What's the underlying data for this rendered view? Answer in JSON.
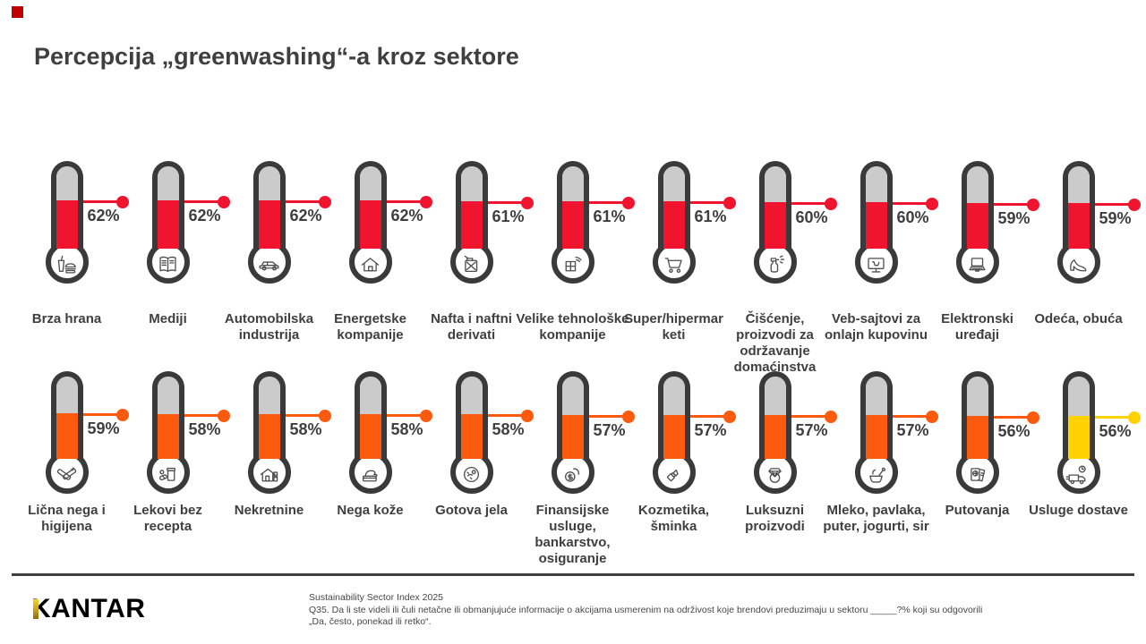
{
  "title": "Percepcija „greenwashing“-a kroz sektore",
  "decor_square_color": "#c00000",
  "palette": {
    "red": "#f0142f",
    "orange": "#fb5a0f",
    "yellow": "#ffd200",
    "tube_gray": "#cbcbcb",
    "outline": "#3a3a3a",
    "text": "#3f3f3f"
  },
  "rows": [
    {
      "items": [
        {
          "label": "Brza hrana",
          "value": 62,
          "color": "#f0142f",
          "icon": "fast-food"
        },
        {
          "label": "Mediji",
          "value": 62,
          "color": "#f0142f",
          "icon": "media-magazine"
        },
        {
          "label": "Automobilska industrija",
          "value": 62,
          "color": "#f0142f",
          "icon": "car"
        },
        {
          "label": "Energetske kompanije",
          "value": 62,
          "color": "#f0142f",
          "icon": "house-energy"
        },
        {
          "label": "Nafta i naftni derivati",
          "value": 61,
          "color": "#f0142f",
          "icon": "fuel-can"
        },
        {
          "label": "Velike tehnološke kompanije",
          "value": 61,
          "color": "#f0142f",
          "icon": "tech-windows"
        },
        {
          "label": "Super/hipermar keti",
          "value": 61,
          "color": "#f0142f",
          "icon": "shopping-cart"
        },
        {
          "label": "Čišćenje, proizvodi za održavanje domaćinstva",
          "value": 60,
          "color": "#f0142f",
          "icon": "spray-bottle"
        },
        {
          "label": "Veb-sajtovi za onlajn kupovinu",
          "value": 60,
          "color": "#f0142f",
          "icon": "online-shop-monitor"
        },
        {
          "label": "Elektronski uređaji",
          "value": 59,
          "color": "#f0142f",
          "icon": "laptop"
        },
        {
          "label": "Odeća, obuća",
          "value": 59,
          "color": "#f0142f",
          "icon": "high-heel"
        }
      ]
    },
    {
      "items": [
        {
          "label": "Lična nega i higijena",
          "value": 59,
          "color": "#fb5a0f",
          "icon": "toothbrush-hygiene"
        },
        {
          "label": "Lekovi bez recepta",
          "value": 58,
          "color": "#fb5a0f",
          "icon": "medicine-pills"
        },
        {
          "label": "Nekretnine",
          "value": 58,
          "color": "#fb5a0f",
          "icon": "real-estate-construction"
        },
        {
          "label": "Nega kože",
          "value": 58,
          "color": "#fb5a0f",
          "icon": "skincare-cream"
        },
        {
          "label": "Gotova jela",
          "value": 58,
          "color": "#fb5a0f",
          "icon": "ready-meal-plate"
        },
        {
          "label": "Finansijske usluge, bankarstvo, osiguranje",
          "value": 57,
          "color": "#fb5a0f",
          "icon": "finance-coins"
        },
        {
          "label": "Kozmetika, šminka",
          "value": 57,
          "color": "#fb5a0f",
          "icon": "lipstick"
        },
        {
          "label": "Luksuzni proizvodi",
          "value": 57,
          "color": "#fb5a0f",
          "icon": "diamond-ring"
        },
        {
          "label": "Mleko, pavlaka, puter, jogurti, sir",
          "value": 57,
          "color": "#fb5a0f",
          "icon": "dairy-bowl"
        },
        {
          "label": "Putovanja",
          "value": 56,
          "color": "#fb5a0f",
          "icon": "travel-passport"
        },
        {
          "label": "Usluge dostave",
          "value": 56,
          "color": "#ffd200",
          "icon": "delivery-truck"
        }
      ]
    }
  ],
  "footer": {
    "logo_text": "KANTAR",
    "source_lines": [
      "Sustainability Sector Index 2025",
      " Q35. Da li ste videli ili čuli netačne ili obmanjujuće informacije o akcijama usmerenim na održivost koje brendovi preduzimaju u sektoru _____?% koji su odgovorili",
      "„Da, često, ponekad ili retko“."
    ]
  },
  "chart_data": {
    "type": "bar",
    "style": "thermometer-pictogram",
    "title": "Percepcija „greenwashing“-a kroz sektore",
    "unit": "%",
    "ylim": [
      0,
      100
    ],
    "legend": false,
    "categories": [
      "Brza hrana",
      "Mediji",
      "Automobilska industrija",
      "Energetske kompanije",
      "Nafta i naftni derivati",
      "Velike tehnološke kompanije",
      "Super/hipermar keti",
      "Čišćenje, proizvodi za održavanje domaćinstva",
      "Veb-sajtovi za onlajn kupovinu",
      "Elektronski uređaji",
      "Odeća, obuća",
      "Lična nega i higijena",
      "Lekovi bez recepta",
      "Nekretnine",
      "Nega kože",
      "Gotova jela",
      "Finansijske usluge, bankarstvo, osiguranje",
      "Kozmetika, šminka",
      "Luksuzni proizvodi",
      "Mleko, pavlaka, puter, jogurti, sir",
      "Putovanja",
      "Usluge dostave"
    ],
    "values": [
      62,
      62,
      62,
      62,
      61,
      61,
      61,
      60,
      60,
      59,
      59,
      59,
      58,
      58,
      58,
      58,
      57,
      57,
      57,
      57,
      56,
      56
    ],
    "colors": [
      "#f0142f",
      "#f0142f",
      "#f0142f",
      "#f0142f",
      "#f0142f",
      "#f0142f",
      "#f0142f",
      "#f0142f",
      "#f0142f",
      "#f0142f",
      "#f0142f",
      "#fb5a0f",
      "#fb5a0f",
      "#fb5a0f",
      "#fb5a0f",
      "#fb5a0f",
      "#fb5a0f",
      "#fb5a0f",
      "#fb5a0f",
      "#fb5a0f",
      "#fb5a0f",
      "#ffd200"
    ],
    "source": "Sustainability Sector Index 2025"
  }
}
